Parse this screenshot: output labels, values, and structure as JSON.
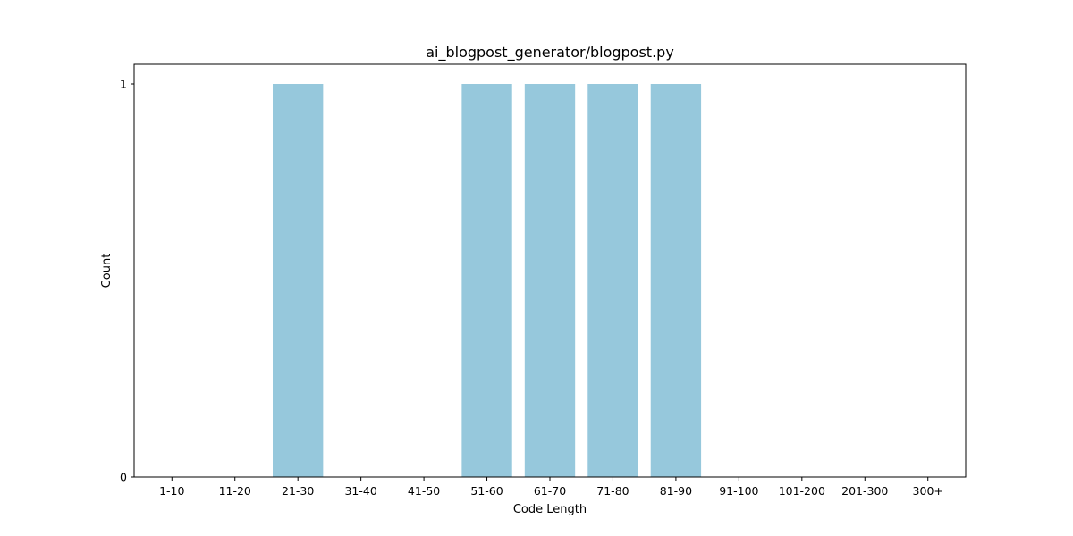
{
  "chart_data": {
    "type": "bar",
    "title": "ai_blogpost_generator/blogpost.py",
    "xlabel": "Code Length",
    "ylabel": "Count",
    "categories": [
      "1-10",
      "11-20",
      "21-30",
      "31-40",
      "41-50",
      "51-60",
      "61-70",
      "71-80",
      "81-90",
      "91-100",
      "101-200",
      "201-300",
      "300+"
    ],
    "values": [
      0,
      0,
      1,
      0,
      0,
      1,
      1,
      1,
      1,
      0,
      0,
      0,
      0
    ],
    "ylim": [
      0,
      1.05
    ],
    "yticks": [
      0,
      1
    ],
    "grid": false,
    "legend": "none",
    "bar_color": "#96c8dc"
  }
}
